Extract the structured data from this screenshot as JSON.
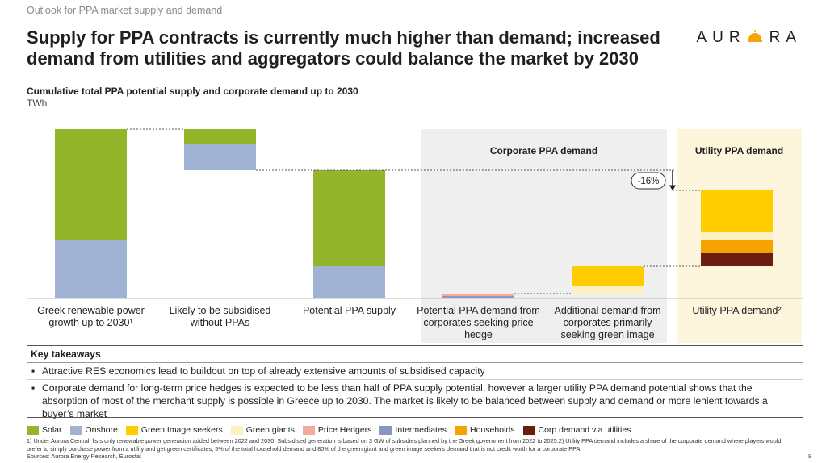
{
  "header": {
    "kicker": "Outlook for PPA market supply and demand",
    "title": "Supply for PPA contracts is currently much higher than demand; increased demand from utilities and aggregators could balance the market by 2030",
    "logo_left": "AUR",
    "logo_right": "RA"
  },
  "chart_data": {
    "type": "waterfall",
    "subtitle": "Cumulative total PPA potential supply and corporate demand up to 2030",
    "unit": "TWh",
    "categories": [
      "Greek renewable power growth up to 2030¹",
      "Likely to be subsidised without PPAs",
      "Potential PPA supply",
      "Potential PPA demand from corporates seeking price hedge",
      "Additional demand from corporates primarily seeking green image",
      "Utility PPA demand²"
    ],
    "steps": [
      "total",
      "decrease",
      "total",
      "total",
      "increase",
      "increase"
    ],
    "panels": [
      {
        "label": "Corporate PPA demand",
        "color": "#efefef"
      },
      {
        "label": "Utility PPA demand",
        "color": "#fdf5dc"
      }
    ],
    "series": [
      {
        "name": "Solar",
        "color": "#92b52b",
        "values": [
          13.8,
          1.9,
          11.9,
          null,
          null,
          null
        ]
      },
      {
        "name": "Onshore",
        "color": "#a0b3d4",
        "values": [
          7.2,
          3.2,
          4.0,
          null,
          null,
          null
        ]
      },
      {
        "name": "Green Image seekers",
        "color": "#ffcc00",
        "values": [
          null,
          null,
          null,
          null,
          2.5,
          5.2
        ]
      },
      {
        "name": "Green giants",
        "color": "#fdf0c2",
        "values": [
          null,
          null,
          null,
          null,
          0.9,
          1.0
        ]
      },
      {
        "name": "Price Hedgers",
        "color": "#f3a99b",
        "values": [
          null,
          null,
          null,
          0.3,
          null,
          null
        ]
      },
      {
        "name": "Intermediates",
        "color": "#8797c2",
        "values": [
          null,
          null,
          null,
          0.3,
          null,
          null
        ]
      },
      {
        "name": "Households",
        "color": "#f5a300",
        "values": [
          null,
          null,
          null,
          null,
          null,
          1.6
        ]
      },
      {
        "name": "Corp demand via utilities",
        "color": "#6b1e0e",
        "values": [
          null,
          null,
          null,
          null,
          null,
          1.6
        ]
      }
    ],
    "annotation": {
      "value": -16,
      "label": "-16%"
    }
  },
  "takeaways": {
    "title": "Key takeaways",
    "items": [
      "Attractive RES economics lead to buildout on top of already extensive amounts of subsidised capacity",
      "Corporate demand for long-term price hedges is expected to be less than half of PPA supply potential, however a larger utility PPA  demand potential shows that the absorption of most of the merchant supply is possible in Greece up to 2030. The market is likely to be balanced between supply and demand or more lenient towards a buyer’s market"
    ]
  },
  "footnotes": [
    "1) Under Aurora Central, lists only renewable power generation added between 2022 and 2030. Subsidised generation is based on 3 GW of subsidies planned by the Greek government from 2022 to 2025.2) Utility PPA demand includes a share of the corporate demand where players would prefer to simply purchase power from a utility and get green certificates, 5% of the total household demand and 80% of the green giant and green image seekers demand that is not credit worth for a corporate PPA.",
    "Sources: Aurora Energy Research,  Eurostat"
  ],
  "page_number": "8"
}
